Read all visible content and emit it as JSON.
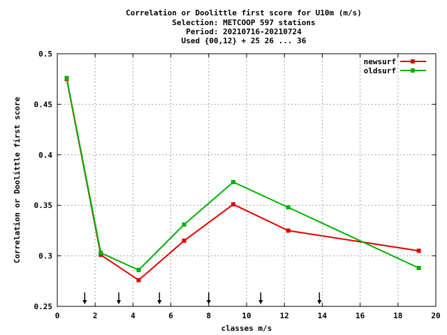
{
  "chart_data": {
    "type": "line",
    "title_lines": [
      "Correlation or Doolittle first score  for U10m (m/s)",
      "Selection: METCOOP    597 stations",
      "Period: 20210716-20210724",
      "Used {00,12} + 25 26 ... 36"
    ],
    "xlabel": "classes m/s",
    "ylabel": "Correlation or Doolittle first score",
    "xlim": [
      0,
      20
    ],
    "ylim": [
      0.25,
      0.5
    ],
    "xticks": [
      0,
      2,
      4,
      6,
      8,
      10,
      12,
      14,
      16,
      18,
      20
    ],
    "yticks": [
      0.25,
      0.3,
      0.35,
      0.4,
      0.45,
      0.5
    ],
    "xtick_labels": [
      "0",
      "2",
      "4",
      "6",
      "8",
      "10",
      "12",
      "14",
      "16",
      "18",
      "20"
    ],
    "ytick_labels": [
      "0.25",
      "0.3",
      "0.35",
      "0.4",
      "0.45",
      "0.5"
    ],
    "grid": true,
    "legend_position": "top-right",
    "class_limits": [
      1.45,
      3.25,
      5.4,
      8.0,
      10.75,
      13.85
    ],
    "series": [
      {
        "name": "newsurf",
        "color": "#e00000",
        "x": [
          0.5,
          2.3,
          4.3,
          6.7,
          9.3,
          12.2,
          19.1
        ],
        "y": [
          0.475,
          0.301,
          0.276,
          0.315,
          0.351,
          0.325,
          0.305
        ]
      },
      {
        "name": "oldsurf",
        "color": "#00b000",
        "x": [
          0.5,
          2.3,
          4.3,
          6.7,
          9.3,
          12.2,
          19.1
        ],
        "y": [
          0.476,
          0.303,
          0.286,
          0.331,
          0.373,
          0.348,
          0.288
        ]
      }
    ]
  }
}
